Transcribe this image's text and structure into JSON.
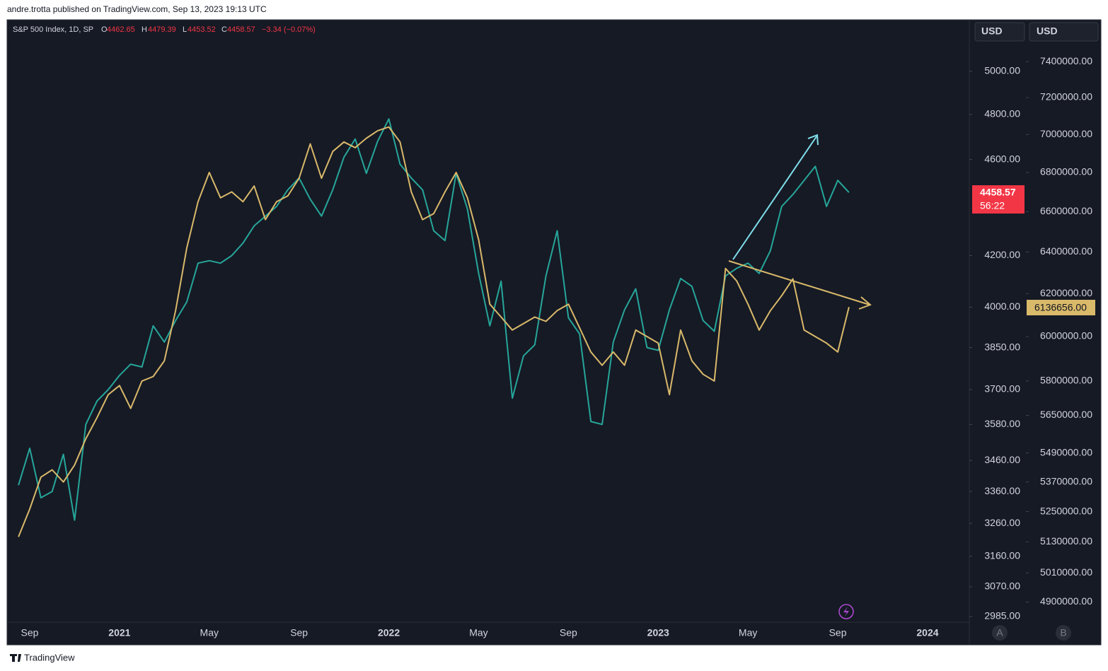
{
  "header": {
    "publisher": "andre.trotta published on TradingView.com, Sep 13, 2023 19:13 UTC"
  },
  "footer": {
    "brand": "TradingView"
  },
  "chart_data": {
    "type": "line",
    "legend": {
      "symbol": "S&P 500 Index, 1D, SP",
      "open_label": "O",
      "open": 4462.65,
      "high_label": "H",
      "high": 4479.39,
      "low_label": "L",
      "low": 4453.52,
      "close_label": "C",
      "close": 4458.57,
      "change": "−3.34 (−0.07%)"
    },
    "countdown": "56:22",
    "currency_buttons": [
      "USD",
      "USD"
    ],
    "scale_buttons": [
      "A",
      "B"
    ],
    "log_scale": true,
    "grid": false,
    "categories": [
      null,
      "Sep",
      null,
      null,
      null,
      null,
      null,
      null,
      null,
      "2021",
      null,
      null,
      null,
      null,
      null,
      null,
      null,
      "May",
      null,
      null,
      null,
      null,
      null,
      null,
      null,
      "Sep",
      null,
      null,
      null,
      null,
      null,
      null,
      null,
      "2022",
      null,
      null,
      null,
      null,
      null,
      null,
      null,
      "May",
      null,
      null,
      null,
      null,
      null,
      null,
      null,
      "Sep",
      null,
      null,
      null,
      null,
      null,
      null,
      null,
      "2023",
      null,
      null,
      null,
      null,
      null,
      null,
      null,
      "May",
      null,
      null,
      null,
      null,
      null,
      null,
      null,
      "Sep",
      null,
      null,
      null,
      null,
      null,
      null,
      null,
      "2024"
    ],
    "series": [
      {
        "name": "S&P 500 Index",
        "color": "#26a69a",
        "values": [
          3380,
          3500,
          3340,
          3360,
          3480,
          3270,
          3580,
          3660,
          3700,
          3750,
          3790,
          3780,
          3930,
          3870,
          3950,
          4020,
          4170,
          4180,
          4170,
          4200,
          4250,
          4320,
          4360,
          4400,
          4470,
          4520,
          4430,
          4360,
          4470,
          4610,
          4690,
          4540,
          4680,
          4780,
          4580,
          4520,
          4470,
          4300,
          4260,
          4540,
          4390,
          4130,
          3930,
          4100,
          3670,
          3820,
          3860,
          4120,
          4300,
          3960,
          3900,
          3590,
          3580,
          3870,
          3990,
          4070,
          3850,
          3840,
          3990,
          4110,
          4080,
          3950,
          3910,
          4120,
          4150,
          4170,
          4130,
          4220,
          4400,
          4450,
          4510,
          4570,
          4400,
          4510,
          4458.57,
          null,
          null,
          null,
          null,
          null,
          null,
          null
        ]
      },
      {
        "name": null,
        "color": "#d9b96a",
        "axis": "y2",
        "values": [
          5150000,
          5260000,
          5390000,
          5420000,
          5370000,
          5440000,
          5550000,
          5640000,
          5740000,
          5780000,
          5680000,
          5800000,
          5820000,
          5890000,
          6120000,
          6420000,
          6650000,
          6800000,
          6670000,
          6700000,
          6650000,
          6730000,
          6560000,
          6650000,
          6680000,
          6770000,
          6950000,
          6770000,
          6910000,
          6960000,
          6930000,
          6980000,
          7020000,
          7040000,
          6960000,
          6700000,
          6560000,
          6590000,
          6700000,
          6800000,
          6670000,
          6460000,
          6150000,
          6090000,
          6030000,
          6060000,
          6090000,
          6070000,
          6120000,
          6150000,
          6040000,
          5930000,
          5870000,
          5930000,
          5870000,
          6030000,
          6000000,
          5970000,
          5740000,
          6030000,
          5890000,
          5830000,
          5800000,
          6320000,
          6260000,
          6150000,
          6030000,
          6120000,
          6190000,
          6270000,
          6030000,
          6000000,
          5970000,
          5930000,
          6136656,
          null,
          null,
          null,
          null,
          null,
          null,
          null
        ],
        "value_labels": [
          null,
          null,
          null,
          null,
          null,
          null,
          null,
          null,
          null,
          null,
          null,
          null,
          null,
          null,
          null,
          null,
          null,
          null,
          null,
          null,
          null,
          null,
          null,
          null,
          null,
          null,
          null,
          null,
          null,
          null,
          null,
          null,
          null,
          null,
          null,
          null,
          null,
          null,
          null,
          null,
          null,
          null,
          null,
          null,
          null,
          null,
          null,
          null,
          null,
          null,
          null,
          null,
          null,
          null,
          null,
          null,
          null,
          null,
          null,
          null,
          null,
          null,
          null,
          null,
          null,
          null,
          null,
          null,
          null,
          null,
          null,
          null,
          null,
          null,
          "6136656.00",
          null,
          null,
          null,
          null,
          null,
          null,
          null
        ]
      }
    ],
    "ylim": [
      2965,
      5250
    ],
    "yticks": [
      {
        "value": 2985,
        "label": "2985.00"
      },
      {
        "value": 3070,
        "label": "3070.00"
      },
      {
        "value": 3160,
        "label": "3160.00"
      },
      {
        "value": 3260,
        "label": "3260.00"
      },
      {
        "value": 3360,
        "label": "3360.00"
      },
      {
        "value": 3460,
        "label": "3460.00"
      },
      {
        "value": 3580,
        "label": "3580.00"
      },
      {
        "value": 3700,
        "label": "3700.00"
      },
      {
        "value": 3850,
        "label": "3850.00"
      },
      {
        "value": 4000,
        "label": "4000.00"
      },
      {
        "value": 4200,
        "label": "4200.00"
      },
      {
        "value": 4600,
        "label": "4600.00"
      },
      {
        "value": 4800,
        "label": "4800.00"
      },
      {
        "value": 5000,
        "label": "5000.00"
      }
    ],
    "y2lim": [
      4820000,
      7640000
    ],
    "y2ticks": [
      {
        "value": 4900000,
        "label": "4900000.00"
      },
      {
        "value": 5010000,
        "label": "5010000.00"
      },
      {
        "value": 5130000,
        "label": "5130000.00"
      },
      {
        "value": 5250000,
        "label": "5250000.00"
      },
      {
        "value": 5370000,
        "label": "5370000.00"
      },
      {
        "value": 5490000,
        "label": "5490000.00"
      },
      {
        "value": 5650000,
        "label": "5650000.00"
      },
      {
        "value": 5800000,
        "label": "5800000.00"
      },
      {
        "value": 6000000,
        "label": "6000000.00"
      },
      {
        "value": 6200000,
        "label": "6200000.00"
      },
      {
        "value": 6400000,
        "label": "6400000.00"
      },
      {
        "value": 6600000,
        "label": "6600000.00"
      },
      {
        "value": 6800000,
        "label": "6800000.00"
      },
      {
        "value": 7000000,
        "label": "7000000.00"
      },
      {
        "value": 7200000,
        "label": "7200000.00"
      },
      {
        "value": 7400000,
        "label": "7400000.00"
      }
    ]
  }
}
